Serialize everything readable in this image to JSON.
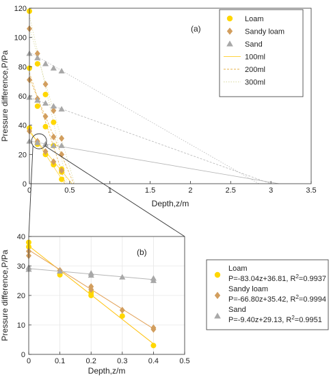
{
  "colors": {
    "loam": "#FFD700",
    "sandy_loam": "#D29E5E",
    "sand": "#A8A8A8",
    "fit_loam": "#FFC20E",
    "fit_sandy_loam": "#E2A25A",
    "fit_sand": "#B5B5B5",
    "line_100": "#FFD23F",
    "line_200": "#E6B24A",
    "line_300": "#D9D9A0",
    "axis": "#333333",
    "grid": "#E6E6E6"
  },
  "chart_data": [
    {
      "type": "scatter",
      "panel_label": "(a)",
      "xlabel": "Depth,z/m",
      "ylabel": "Pressure difference,P/Pa",
      "xlim": [
        0,
        3.5
      ],
      "ylim": [
        0,
        120
      ],
      "xticks": [
        "0",
        "0.5",
        "1",
        "1.5",
        "2",
        "2.5",
        "3",
        "3.5"
      ],
      "yticks": [
        "0",
        "20",
        "40",
        "60",
        "80",
        "100",
        "120"
      ],
      "grid": false,
      "legend_position": "top-right",
      "legend": [
        "Loam",
        "Sandy loam",
        "Sand",
        "100ml",
        "200ml",
        "300ml"
      ],
      "series": [
        {
          "name": "Loam",
          "marker": "circle",
          "group": "100ml",
          "x": [
            0,
            0.1,
            0.2,
            0.3,
            0.4
          ],
          "y": [
            38,
            27,
            20,
            13,
            3
          ]
        },
        {
          "name": "Loam",
          "marker": "circle",
          "group": "200ml",
          "x": [
            0,
            0.1,
            0.2,
            0.3,
            0.4
          ],
          "y": [
            79,
            53,
            39,
            26,
            8
          ]
        },
        {
          "name": "Loam",
          "marker": "circle",
          "group": "300ml",
          "x": [
            0,
            0.1,
            0.2,
            0.3,
            0.4
          ],
          "y": [
            118,
            82,
            61,
            42,
            10
          ]
        },
        {
          "name": "Sandy loam",
          "marker": "diamond",
          "group": "100ml",
          "x": [
            0,
            0.1,
            0.2,
            0.3,
            0.4
          ],
          "y": [
            36,
            29,
            22,
            15,
            9
          ]
        },
        {
          "name": "Sandy loam",
          "marker": "diamond",
          "group": "200ml",
          "x": [
            0,
            0.1,
            0.2,
            0.3,
            0.4
          ],
          "y": [
            71,
            58,
            46,
            32,
            20
          ]
        },
        {
          "name": "Sandy loam",
          "marker": "diamond",
          "group": "300ml",
          "x": [
            0,
            0.1,
            0.2,
            0.3,
            0.4
          ],
          "y": [
            106,
            89,
            68,
            50,
            31
          ]
        },
        {
          "name": "Sand",
          "marker": "triangle",
          "group": "100ml",
          "x": [
            0,
            0.1,
            0.2,
            0.3,
            0.4
          ],
          "y": [
            29,
            28,
            27,
            26,
            26
          ]
        },
        {
          "name": "Sand",
          "marker": "triangle",
          "group": "200ml",
          "x": [
            0,
            0.1,
            0.2,
            0.3,
            0.4
          ],
          "y": [
            59,
            57,
            55,
            53,
            51
          ]
        },
        {
          "name": "Sand",
          "marker": "triangle",
          "group": "300ml",
          "x": [
            0,
            0.1,
            0.2,
            0.3,
            0.4
          ],
          "y": [
            89,
            86,
            82,
            79,
            77
          ]
        }
      ],
      "fit_lines": [
        {
          "group": "100ml",
          "soil": "Loam",
          "x": [
            0,
            0.44
          ],
          "y": [
            36.81,
            0
          ]
        },
        {
          "group": "100ml",
          "soil": "Sandy loam",
          "x": [
            0,
            0.53
          ],
          "y": [
            35.42,
            0
          ]
        },
        {
          "group": "100ml",
          "soil": "Sand",
          "x": [
            0,
            3.1
          ],
          "y": [
            29.13,
            0
          ]
        },
        {
          "group": "200ml",
          "soil": "Loam",
          "x": [
            0,
            0.45
          ],
          "y": [
            76,
            0
          ]
        },
        {
          "group": "200ml",
          "soil": "Sandy loam",
          "x": [
            0,
            0.55
          ],
          "y": [
            72,
            0
          ]
        },
        {
          "group": "200ml",
          "soil": "Sand",
          "x": [
            0,
            3.0
          ],
          "y": [
            59,
            0
          ]
        },
        {
          "group": "300ml",
          "soil": "Loam",
          "x": [
            0,
            0.47
          ],
          "y": [
            115,
            0
          ]
        },
        {
          "group": "300ml",
          "soil": "Sandy loam",
          "x": [
            0,
            0.56
          ],
          "y": [
            107,
            0
          ]
        },
        {
          "group": "300ml",
          "soil": "Sand",
          "x": [
            0,
            2.85
          ],
          "y": [
            90,
            0
          ]
        }
      ],
      "zoom_circle": {
        "x": 0.12,
        "y": 29
      }
    },
    {
      "type": "scatter",
      "panel_label": "(b)",
      "xlabel": "Depth,z/m",
      "ylabel": "Pressure difference,P/Pa",
      "xlim": [
        0,
        0.5
      ],
      "ylim": [
        0,
        40
      ],
      "xticks": [
        "0",
        "0.1",
        "0.2",
        "0.3",
        "0.4",
        "0.5"
      ],
      "yticks": [
        "0",
        "10",
        "20",
        "30",
        "40"
      ],
      "grid": true,
      "legend_position": "right, outside",
      "legend": [
        {
          "name": "Loam",
          "equation": "P=-83.04z+36.81, R",
          "r2": "=0.9937"
        },
        {
          "name": "Sandy loam",
          "equation": "P=-66.80z+35.42, R",
          "r2": "=0.9994"
        },
        {
          "name": "Sand",
          "equation": "P=-9.40z+29.13, R",
          "r2": "=0.9951"
        }
      ],
      "series": [
        {
          "name": "Loam",
          "marker": "circle",
          "x": [
            0,
            0,
            0.1,
            0.2,
            0.2,
            0.3,
            0.4
          ],
          "y": [
            38,
            36.5,
            27,
            20,
            21,
            13,
            3
          ]
        },
        {
          "name": "Sandy loam",
          "marker": "diamond",
          "x": [
            0,
            0,
            0.1,
            0.2,
            0.2,
            0.3,
            0.4,
            0.4
          ],
          "y": [
            35,
            33.5,
            28.5,
            22,
            23,
            15,
            9,
            8.5
          ]
        },
        {
          "name": "Sand",
          "marker": "triangle",
          "x": [
            0,
            0,
            0.1,
            0.2,
            0.2,
            0.3,
            0.4,
            0.4
          ],
          "y": [
            29.5,
            28.8,
            28.2,
            27.5,
            26.8,
            26.2,
            25.8,
            25
          ]
        }
      ],
      "fits": [
        {
          "name": "Loam",
          "slope": -83.04,
          "intercept": 36.81,
          "x": [
            0,
            0.4
          ]
        },
        {
          "name": "Sandy loam",
          "slope": -66.8,
          "intercept": 35.42,
          "x": [
            0,
            0.4
          ]
        },
        {
          "name": "Sand",
          "slope": -9.4,
          "intercept": 29.13,
          "x": [
            0,
            0.4
          ]
        }
      ]
    }
  ]
}
